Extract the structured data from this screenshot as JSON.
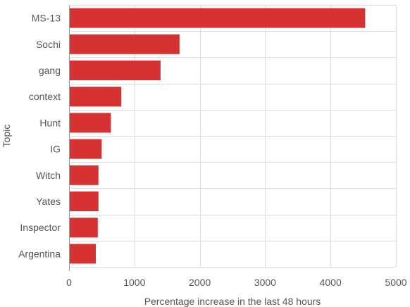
{
  "chart_data": {
    "type": "bar",
    "orientation": "horizontal",
    "xlabel": "Percentage increase in the last 48 hours",
    "ylabel": "Topic",
    "xlim": [
      0,
      5000
    ],
    "xticks": [
      0,
      1000,
      2000,
      3000,
      4000,
      5000
    ],
    "grid": true,
    "bar_color": "#d63232",
    "categories": [
      "MS-13",
      "Sochi",
      "gang",
      "context",
      "Hunt",
      "IG",
      "Witch",
      "Yates",
      "Inspector",
      "Argentina"
    ],
    "values": [
      4530,
      1690,
      1400,
      800,
      640,
      500,
      450,
      450,
      440,
      410
    ]
  }
}
